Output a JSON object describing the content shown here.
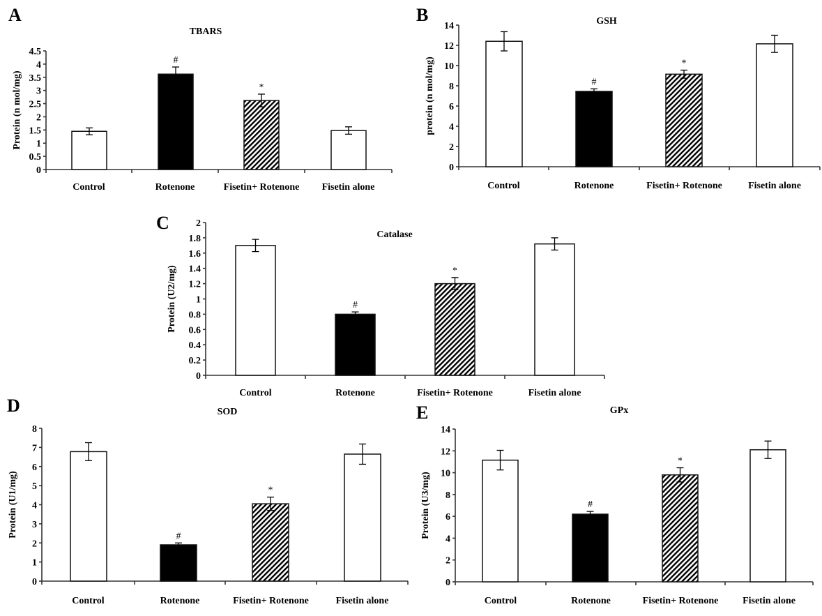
{
  "figure": {
    "panels": [
      "A",
      "B",
      "C",
      "D",
      "E"
    ]
  },
  "chart_data": [
    {
      "panel": "A",
      "type": "bar",
      "title": "TBARS",
      "ylabel": "Protein (n mol/mg)",
      "xlabel": "",
      "categories": [
        "Control",
        "Rotenone",
        "Fisetin+ Rotenone",
        "Fisetin alone"
      ],
      "values": [
        1.45,
        3.62,
        2.62,
        1.48
      ],
      "errors": [
        0.13,
        0.27,
        0.24,
        0.14
      ],
      "styles": [
        "white",
        "black",
        "hatched",
        "white"
      ],
      "annotations": [
        "",
        "#",
        "*",
        ""
      ],
      "ylim": [
        0,
        4.5
      ],
      "yticks": [
        0,
        0.5,
        1,
        1.5,
        2,
        2.5,
        3,
        3.5,
        4,
        4.5
      ],
      "ytick_labels": [
        "0",
        "0.5",
        "1",
        "1.5",
        "2",
        "2.5",
        "3",
        "3.5",
        "4",
        "4.5"
      ],
      "grid": false,
      "legend": "none"
    },
    {
      "panel": "B",
      "type": "bar",
      "title": "GSH",
      "ylabel": "protein (n mol/mg)",
      "xlabel": "",
      "categories": [
        "Control",
        "Rotenone",
        "Fisetin+ Rotenone",
        "Fisetin alone"
      ],
      "values": [
        12.4,
        7.45,
        9.15,
        12.15
      ],
      "errors": [
        0.95,
        0.25,
        0.4,
        0.85
      ],
      "styles": [
        "white",
        "black",
        "hatched",
        "white"
      ],
      "annotations": [
        "",
        "#",
        "*",
        ""
      ],
      "ylim": [
        0,
        14
      ],
      "yticks": [
        0,
        2,
        4,
        6,
        8,
        10,
        12,
        14
      ],
      "ytick_labels": [
        "0",
        "2",
        "4",
        "6",
        "8",
        "10",
        "12",
        "14"
      ],
      "grid": false,
      "legend": "none"
    },
    {
      "panel": "C",
      "type": "bar",
      "title": "Catalase",
      "ylabel": "Protein (U2/mg)",
      "xlabel": "",
      "categories": [
        "Control",
        "Rotenone",
        "Fisetin+ Rotenone",
        "Fisetin alone"
      ],
      "values": [
        1.7,
        0.8,
        1.2,
        1.72
      ],
      "errors": [
        0.08,
        0.03,
        0.08,
        0.08
      ],
      "styles": [
        "white",
        "black",
        "hatched",
        "white"
      ],
      "annotations": [
        "",
        "#",
        "*",
        ""
      ],
      "ylim": [
        0,
        2
      ],
      "yticks": [
        0,
        0.2,
        0.4,
        0.6,
        0.8,
        1,
        1.2,
        1.4,
        1.6,
        1.8,
        2
      ],
      "ytick_labels": [
        "0",
        "0.2",
        "0.4",
        "0.6",
        "0.8",
        "1",
        "1.2",
        "1.4",
        "1.6",
        "1.8",
        "2"
      ],
      "grid": false,
      "legend": "none"
    },
    {
      "panel": "D",
      "type": "bar",
      "title": "SOD",
      "ylabel": "Protein (U1/mg)",
      "xlabel": "",
      "categories": [
        "Control",
        "Rotenone",
        "Fisetin+ Rotenone",
        "Fisetin alone"
      ],
      "values": [
        6.78,
        1.9,
        4.05,
        6.65
      ],
      "errors": [
        0.47,
        0.1,
        0.35,
        0.53
      ],
      "styles": [
        "white",
        "black",
        "hatched",
        "white"
      ],
      "annotations": [
        "",
        "#",
        "*",
        ""
      ],
      "ylim": [
        0,
        8
      ],
      "yticks": [
        0,
        1,
        2,
        3,
        4,
        5,
        6,
        7,
        8
      ],
      "ytick_labels": [
        "0",
        "1",
        "2",
        "3",
        "4",
        "5",
        "6",
        "7",
        "8"
      ],
      "grid": false,
      "legend": "none"
    },
    {
      "panel": "E",
      "type": "bar",
      "title": "GPx",
      "ylabel": "Protein (U3/mg)",
      "xlabel": "",
      "categories": [
        "Control",
        "Rotenone",
        "Fisetin+ Rotenone",
        "Fisetin alone"
      ],
      "values": [
        11.15,
        6.2,
        9.8,
        12.1
      ],
      "errors": [
        0.9,
        0.25,
        0.65,
        0.8
      ],
      "styles": [
        "white",
        "black",
        "hatched",
        "white"
      ],
      "annotations": [
        "",
        "#",
        "*",
        ""
      ],
      "ylim": [
        0,
        14
      ],
      "yticks": [
        0,
        2,
        4,
        6,
        8,
        10,
        12,
        14
      ],
      "ytick_labels": [
        "0",
        "2",
        "4",
        "6",
        "8",
        "10",
        "12",
        "14"
      ],
      "grid": false,
      "legend": "none"
    }
  ]
}
